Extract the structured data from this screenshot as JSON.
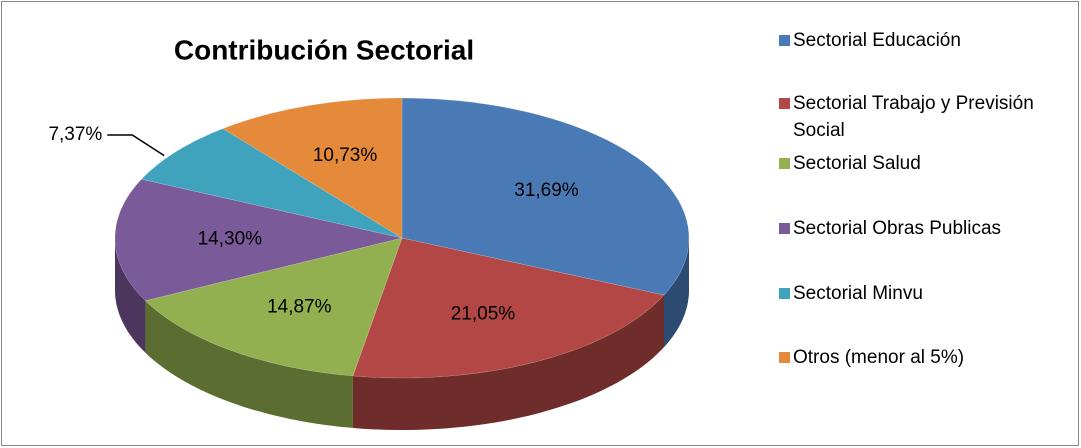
{
  "chart_data": {
    "type": "pie",
    "title": "Contribución Sectorial",
    "categories": [
      "Sectorial Educación",
      "Sectorial Trabajo y Previsión Social",
      "Sectorial Salud",
      "Sectorial Obras Publicas",
      "Sectorial Minvu",
      "Otros (menor al 5%)"
    ],
    "values": [
      31.69,
      21.05,
      14.87,
      14.3,
      7.37,
      10.73
    ],
    "value_labels": [
      "31,69%",
      "21,05%",
      "14,87%",
      "14,30%",
      "7,37%",
      "10,73%"
    ],
    "colors": [
      "#4a7ab5",
      "#b24745",
      "#93b050",
      "#7a5a98",
      "#3fa3bd",
      "#e48a3a"
    ],
    "legend": "right"
  }
}
